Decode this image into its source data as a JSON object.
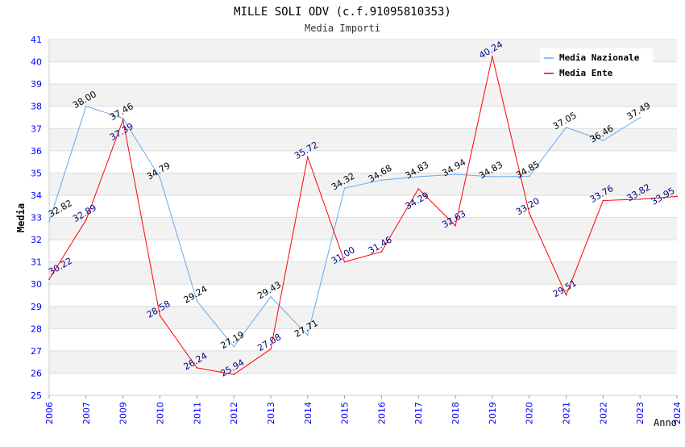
{
  "chart_data": {
    "type": "line",
    "title": "MILLE SOLI ODV (c.f.91095810353)",
    "subtitle": "Media Importi",
    "xlabel": "Anno",
    "ylabel": "Media",
    "ylim": [
      25,
      41
    ],
    "yticks": [
      "25",
      "26",
      "27",
      "28",
      "29",
      "30",
      "31",
      "32",
      "33",
      "34",
      "35",
      "36",
      "37",
      "38",
      "39",
      "40",
      "41"
    ],
    "categories": [
      "2006",
      "2007",
      "2009",
      "2010",
      "2011",
      "2012",
      "2013",
      "2014",
      "2015",
      "2016",
      "2017",
      "2018",
      "2019",
      "2020",
      "2021",
      "2022",
      "2023",
      "2024"
    ],
    "legend_position": "top-right",
    "series": [
      {
        "name": "Media Nazionale",
        "color": "#66aaee",
        "label_color": "#000000",
        "values": [
          32.82,
          38.0,
          37.46,
          34.79,
          29.24,
          27.19,
          29.43,
          27.71,
          34.32,
          34.68,
          34.83,
          34.94,
          34.83,
          34.85,
          37.05,
          36.46,
          37.49,
          null
        ],
        "labels": [
          "32.82",
          "38.00",
          "37.46",
          "34.79",
          "29.24",
          "27.19",
          "29.43",
          "27.71",
          "34.32",
          "34.68",
          "34.83",
          "34.94",
          "34.83",
          "34.85",
          "37.05",
          "36.46",
          "37.49",
          null
        ]
      },
      {
        "name": "Media Ente",
        "color": "#ff0000",
        "label_color": "#000080",
        "values": [
          30.22,
          32.89,
          37.39,
          28.58,
          26.24,
          25.94,
          27.08,
          35.72,
          31.0,
          31.46,
          34.29,
          32.63,
          40.24,
          33.2,
          29.51,
          33.76,
          33.82,
          33.95
        ],
        "labels": [
          "30.22",
          "32.89",
          "37.39",
          "28.58",
          "26.24",
          "25.94",
          "27.08",
          "35.72",
          "31.00",
          "31.46",
          "34.29",
          "32.63",
          "40.24",
          "33.20",
          "29.51",
          "33.76",
          "33.82",
          "33.95"
        ]
      }
    ]
  }
}
